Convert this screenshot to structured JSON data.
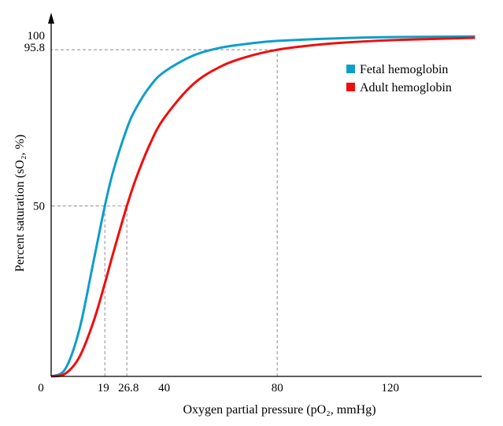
{
  "chart_data": {
    "type": "line",
    "title": "",
    "xlabel": "Oxygen partial pressure (pO₂, mmHg)",
    "ylabel": "Percent saturation (sO₂, %)",
    "xlim": [
      0,
      150
    ],
    "ylim": [
      0,
      100
    ],
    "x_ticks": [
      {
        "v": 0,
        "label": "0"
      },
      {
        "v": 19,
        "label": "19"
      },
      {
        "v": 26.8,
        "label": "26.8"
      },
      {
        "v": 40,
        "label": "40"
      },
      {
        "v": 80,
        "label": "80"
      },
      {
        "v": 120,
        "label": "120"
      }
    ],
    "y_ticks": [
      {
        "v": 50,
        "label": "50"
      },
      {
        "v": 95.8,
        "label": "95.8"
      },
      {
        "v": 100,
        "label": "100"
      }
    ],
    "grid": false,
    "legend_position": "top-right",
    "reference_lines": [
      {
        "x": 19,
        "y": 50
      },
      {
        "x": 26.8,
        "y": 50
      },
      {
        "x": 80,
        "y": 95.8
      }
    ],
    "series": [
      {
        "name": "Fetal hemoglobin",
        "color": "#0e9ec9",
        "x": [
          0,
          5,
          10,
          15,
          19,
          22,
          26.8,
          30,
          35,
          40,
          50,
          60,
          70,
          80,
          100,
          120,
          150
        ],
        "y": [
          0,
          2.2,
          13.8,
          33.8,
          50,
          60.3,
          72.7,
          78.6,
          85.1,
          89.3,
          94.0,
          96.4,
          97.6,
          98.4,
          99.1,
          99.5,
          99.7
        ]
      },
      {
        "name": "Adult hemoglobin",
        "color": "#f20c0c",
        "x": [
          0,
          5,
          10,
          15,
          19,
          22,
          26.8,
          30,
          35,
          40,
          50,
          60,
          70,
          80,
          90,
          100,
          120,
          150
        ],
        "y": [
          0,
          0.8,
          5.7,
          16.1,
          27.3,
          36.3,
          50,
          58.0,
          68.2,
          75.8,
          85.5,
          90.9,
          93.9,
          95.8,
          96.9,
          97.7,
          98.6,
          99.3
        ]
      }
    ]
  }
}
